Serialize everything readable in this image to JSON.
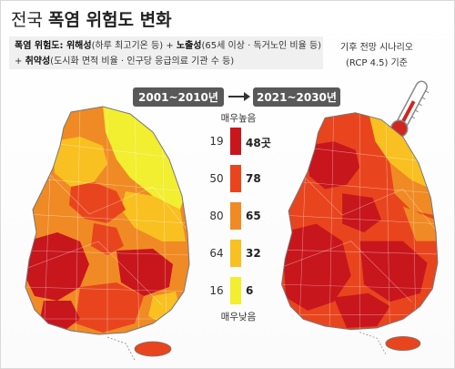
{
  "title": {
    "prefix": "전국 ",
    "main": "폭염 위험도 변화"
  },
  "description": {
    "line1_label": "폭염 위험도: ",
    "line1_part1_bold": "위해성",
    "line1_part1_rest": "(하루 최고기온 등) + ",
    "line1_part2_bold": "노출성",
    "line1_part2_rest": "(65세 이상 · 독거노인 비율 등)",
    "line2_prefix": "+ ",
    "line2_bold": "취약성",
    "line2_rest": "(도시화 면적 비율 · 인구당 응급의료 기관 수 등)"
  },
  "scenario": {
    "line1": "기후 전망 시나리오",
    "line2": "(RCP 4.5) 기준"
  },
  "periods": {
    "left": "2001~2010년",
    "right": "2021~2030년"
  },
  "legend": {
    "top_label": "매우높음",
    "bottom_label": "매우낮음",
    "items": [
      {
        "left": "19",
        "right": "48곳",
        "color": "#c8161d"
      },
      {
        "left": "50",
        "right": "78",
        "color": "#e8451e"
      },
      {
        "left": "80",
        "right": "65",
        "color": "#f08a24"
      },
      {
        "left": "64",
        "right": "32",
        "color": "#f8c020"
      },
      {
        "left": "16",
        "right": "6",
        "color": "#f2ee30"
      }
    ]
  },
  "colors": {
    "very_high": "#c8161d",
    "high": "#e8451e",
    "medium": "#f08a24",
    "low": "#f8c020",
    "very_low": "#f2ee30",
    "pill": "#595959",
    "outline": "#777777"
  }
}
